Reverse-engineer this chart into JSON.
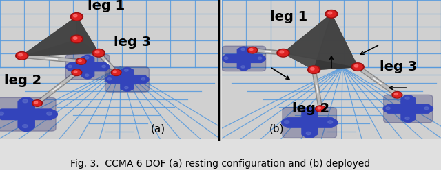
{
  "figsize": [
    6.4,
    2.48
  ],
  "dpi": 100,
  "fig_bg": "#e0e0e0",
  "panel_bg": "#d0d0d0",
  "grid_color": "#5599dd",
  "grid_alpha": 0.85,
  "caption": "Fig. 3.  CCMA 6 DOF (a) resting configuration and (b) deployed",
  "caption_fontsize": 10,
  "panel_labels": [
    "(a)",
    "(b)"
  ],
  "panel_label_fontsize": 11,
  "leg_label_fontsize": 14,
  "leg_color": "#cccccc",
  "joint_color_outer": "#cc2222",
  "joint_color_inner": "#ff6666",
  "robot_color": "#3344bb",
  "tetra_color1": "#555555",
  "tetra_color2": "#333333",
  "divider_color": "#111111"
}
